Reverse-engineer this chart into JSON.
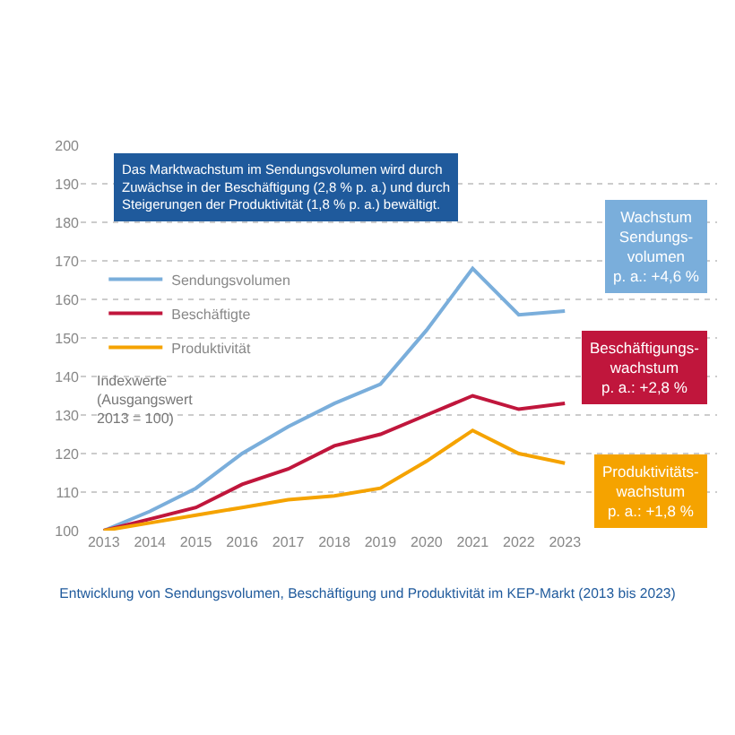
{
  "chart_data": {
    "type": "line",
    "title": "Entwicklung von Sendungsvolumen, Beschäftigung und Produktivität im KEP-Markt (2013 bis 2023)",
    "ylabel": "Indexwerte\n(Ausgangswert\n2013 = 100)",
    "x": [
      2013,
      2014,
      2015,
      2016,
      2017,
      2018,
      2019,
      2020,
      2021,
      2022,
      2023
    ],
    "series": [
      {
        "name": "Sendungsvolumen",
        "color": "#7aaedb",
        "values": [
          100,
          105,
          111,
          120,
          127,
          133,
          138,
          152,
          168,
          156,
          157
        ]
      },
      {
        "name": "Beschäftigte",
        "color": "#c0163c",
        "values": [
          100,
          103,
          106,
          112,
          116,
          122,
          125,
          130,
          135,
          131.5,
          133
        ]
      },
      {
        "name": "Produktivität",
        "color": "#f5a300",
        "values": [
          100,
          102,
          104,
          106,
          108,
          109,
          111,
          118,
          126,
          120,
          117.5
        ]
      }
    ],
    "xlim": [
      2012.5,
      2026.3
    ],
    "xticks": [
      2013,
      2014,
      2015,
      2016,
      2017,
      2018,
      2019,
      2020,
      2021,
      2022,
      2023
    ],
    "ylim": [
      100,
      200
    ],
    "yticks": [
      100,
      110,
      120,
      130,
      140,
      150,
      160,
      170,
      180,
      190,
      200
    ],
    "grid": "y",
    "legend": "left",
    "marker": "none",
    "line_style": "solid",
    "annotations": [
      "Das Marktwachstum im Sendungsvolumen wird durch\nZuwächse in der Beschäftigung (2,8 % p. a.) und durch\nSteigerungen der Produktivität (1,8 % p. a.) bewältigt.",
      "Wachstum\nSendungs-\nvolumen\np. a.: +4,6 %",
      "Beschäftigungs-\nwachstum\np. a.: +2,8 %",
      "Produktivitäts-\nwachstum\np. a.: +1,8 %"
    ]
  }
}
